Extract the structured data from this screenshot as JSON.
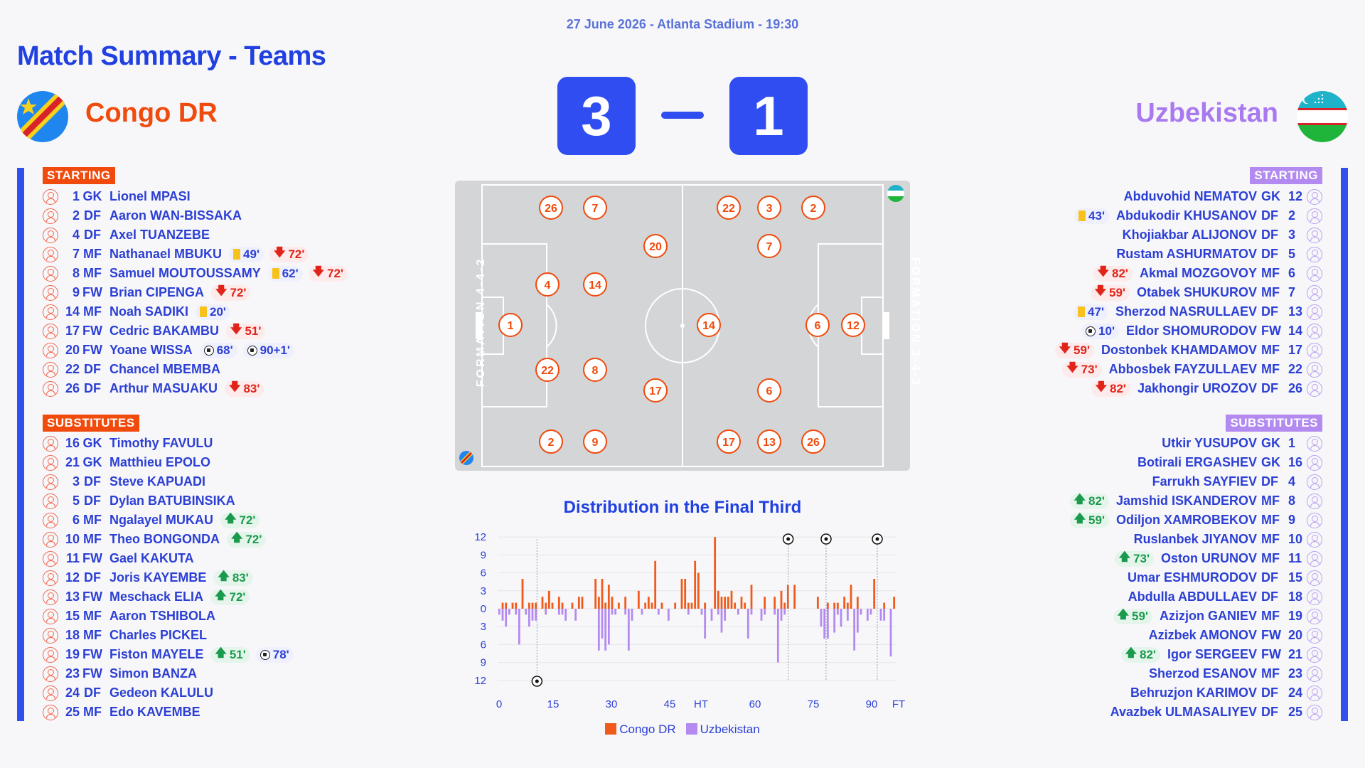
{
  "header": {
    "date_line": "27 June 2026 - Atlanta Stadium - 19:30",
    "title": "Match Summary - Teams"
  },
  "home": {
    "name": "Congo DR",
    "score": "3",
    "color": "#f04a0c",
    "starting_label": "STARTING",
    "subs_label": "SUBSTITUTES",
    "formation": "FORMATION 4-4-2",
    "starting": [
      {
        "num": "1",
        "pos": "GK",
        "name": "Lionel MPASI",
        "events": []
      },
      {
        "num": "2",
        "pos": "DF",
        "name": "Aaron WAN-BISSAKA",
        "events": []
      },
      {
        "num": "4",
        "pos": "DF",
        "name": "Axel TUANZEBE",
        "events": []
      },
      {
        "num": "7",
        "pos": "MF",
        "name": "Nathanael MBUKU",
        "events": [
          {
            "type": "yellow",
            "min": "49'"
          },
          {
            "type": "off",
            "min": "72'"
          }
        ]
      },
      {
        "num": "8",
        "pos": "MF",
        "name": "Samuel MOUTOUSSAMY",
        "events": [
          {
            "type": "yellow",
            "min": "62'"
          },
          {
            "type": "off",
            "min": "72'"
          }
        ]
      },
      {
        "num": "9",
        "pos": "FW",
        "name": "Brian CIPENGA",
        "events": [
          {
            "type": "off",
            "min": "72'"
          }
        ]
      },
      {
        "num": "14",
        "pos": "MF",
        "name": "Noah SADIKI",
        "events": [
          {
            "type": "yellow",
            "min": "20'"
          }
        ]
      },
      {
        "num": "17",
        "pos": "FW",
        "name": "Cedric BAKAMBU",
        "events": [
          {
            "type": "off",
            "min": "51'"
          }
        ]
      },
      {
        "num": "20",
        "pos": "FW",
        "name": "Yoane WISSA",
        "events": [
          {
            "type": "goal",
            "min": "68'"
          },
          {
            "type": "goal",
            "min": "90+1'"
          }
        ]
      },
      {
        "num": "22",
        "pos": "DF",
        "name": "Chancel MBEMBA",
        "events": []
      },
      {
        "num": "26",
        "pos": "DF",
        "name": "Arthur MASUAKU",
        "events": [
          {
            "type": "off",
            "min": "83'"
          }
        ]
      }
    ],
    "subs": [
      {
        "num": "16",
        "pos": "GK",
        "name": "Timothy FAVULU",
        "events": []
      },
      {
        "num": "21",
        "pos": "GK",
        "name": "Matthieu EPOLO",
        "events": []
      },
      {
        "num": "3",
        "pos": "DF",
        "name": "Steve KAPUADI",
        "events": []
      },
      {
        "num": "5",
        "pos": "DF",
        "name": "Dylan BATUBINSIKA",
        "events": []
      },
      {
        "num": "6",
        "pos": "MF",
        "name": "Ngalayel MUKAU",
        "events": [
          {
            "type": "on",
            "min": "72'"
          }
        ]
      },
      {
        "num": "10",
        "pos": "MF",
        "name": "Theo BONGONDA",
        "events": [
          {
            "type": "on",
            "min": "72'"
          }
        ]
      },
      {
        "num": "11",
        "pos": "FW",
        "name": "Gael KAKUTA",
        "events": []
      },
      {
        "num": "12",
        "pos": "DF",
        "name": "Joris KAYEMBE",
        "events": [
          {
            "type": "on",
            "min": "83'"
          }
        ]
      },
      {
        "num": "13",
        "pos": "FW",
        "name": "Meschack ELIA",
        "events": [
          {
            "type": "on",
            "min": "72'"
          }
        ]
      },
      {
        "num": "15",
        "pos": "MF",
        "name": "Aaron TSHIBOLA",
        "events": []
      },
      {
        "num": "18",
        "pos": "MF",
        "name": "Charles PICKEL",
        "events": []
      },
      {
        "num": "19",
        "pos": "FW",
        "name": "Fiston MAYELE",
        "events": [
          {
            "type": "on",
            "min": "51'"
          },
          {
            "type": "goal",
            "min": "78'"
          }
        ]
      },
      {
        "num": "23",
        "pos": "FW",
        "name": "Simon BANZA",
        "events": []
      },
      {
        "num": "24",
        "pos": "DF",
        "name": "Gedeon KALULU",
        "events": []
      },
      {
        "num": "25",
        "pos": "MF",
        "name": "Edo KAVEMBE",
        "events": []
      }
    ],
    "pitch_numbers": [
      "26",
      "7",
      "22",
      "3",
      "2",
      "20",
      "7",
      "4",
      "14",
      "1",
      "14",
      "6",
      "12",
      "22",
      "8",
      "17",
      "6",
      "2",
      "9",
      "17",
      "13",
      "26"
    ]
  },
  "away": {
    "name": "Uzbekistan",
    "score": "1",
    "color": "#a979f0",
    "starting_label": "STARTING",
    "subs_label": "SUBSTITUTES",
    "formation": "FORMATION 3-4-3",
    "starting": [
      {
        "num": "12",
        "pos": "GK",
        "name": "Abduvohid NEMATOV",
        "events": []
      },
      {
        "num": "2",
        "pos": "DF",
        "name": "Abdukodir KHUSANOV",
        "events": [
          {
            "type": "yellow",
            "min": "43'"
          }
        ]
      },
      {
        "num": "3",
        "pos": "DF",
        "name": "Khojiakbar ALIJONOV",
        "events": []
      },
      {
        "num": "5",
        "pos": "DF",
        "name": "Rustam ASHURMATOV",
        "events": []
      },
      {
        "num": "6",
        "pos": "MF",
        "name": "Akmal MOZGOVOY",
        "events": [
          {
            "type": "off",
            "min": "82'"
          }
        ]
      },
      {
        "num": "7",
        "pos": "MF",
        "name": "Otabek SHUKUROV",
        "events": [
          {
            "type": "off",
            "min": "59'"
          }
        ]
      },
      {
        "num": "13",
        "pos": "DF",
        "name": "Sherzod NASRULLAEV",
        "events": [
          {
            "type": "yellow",
            "min": "47'"
          }
        ]
      },
      {
        "num": "14",
        "pos": "FW",
        "name": "Eldor SHOMURODOV",
        "events": [
          {
            "type": "goal",
            "min": "10'"
          }
        ]
      },
      {
        "num": "17",
        "pos": "MF",
        "name": "Dostonbek KHAMDAMOV",
        "events": [
          {
            "type": "off",
            "min": "59'"
          }
        ]
      },
      {
        "num": "22",
        "pos": "MF",
        "name": "Abbosbek FAYZULLAEV",
        "events": [
          {
            "type": "off",
            "min": "73'"
          }
        ]
      },
      {
        "num": "26",
        "pos": "DF",
        "name": "Jakhongir UROZOV",
        "events": [
          {
            "type": "off",
            "min": "82'"
          }
        ]
      }
    ],
    "subs": [
      {
        "num": "1",
        "pos": "GK",
        "name": "Utkir YUSUPOV",
        "events": []
      },
      {
        "num": "16",
        "pos": "GK",
        "name": "Botirali ERGASHEV",
        "events": []
      },
      {
        "num": "4",
        "pos": "DF",
        "name": "Farrukh SAYFIEV",
        "events": []
      },
      {
        "num": "8",
        "pos": "MF",
        "name": "Jamshid ISKANDEROV",
        "events": [
          {
            "type": "on",
            "min": "82'"
          }
        ]
      },
      {
        "num": "9",
        "pos": "MF",
        "name": "Odiljon XAMROBEKOV",
        "events": [
          {
            "type": "on",
            "min": "59'"
          }
        ]
      },
      {
        "num": "10",
        "pos": "MF",
        "name": "Ruslanbek JIYANOV",
        "events": []
      },
      {
        "num": "11",
        "pos": "MF",
        "name": "Oston URUNOV",
        "events": [
          {
            "type": "on",
            "min": "73'"
          }
        ]
      },
      {
        "num": "15",
        "pos": "DF",
        "name": "Umar ESHMURODOV",
        "events": []
      },
      {
        "num": "18",
        "pos": "DF",
        "name": "Abdulla ABDULLAEV",
        "events": []
      },
      {
        "num": "19",
        "pos": "MF",
        "name": "Azizjon GANIEV",
        "events": [
          {
            "type": "on",
            "min": "59'"
          }
        ]
      },
      {
        "num": "20",
        "pos": "FW",
        "name": "Azizbek AMONOV",
        "events": []
      },
      {
        "num": "21",
        "pos": "FW",
        "name": "Igor SERGEEV",
        "events": [
          {
            "type": "on",
            "min": "82'"
          }
        ]
      },
      {
        "num": "23",
        "pos": "MF",
        "name": "Sherzod ESANOV",
        "events": []
      },
      {
        "num": "24",
        "pos": "DF",
        "name": "Behruzjon KARIMOV",
        "events": []
      },
      {
        "num": "25",
        "pos": "DF",
        "name": "Avazbek ULMASALIYEV",
        "events": []
      }
    ]
  },
  "distribution": {
    "title": "Distribution in the Final Third",
    "legend": [
      "Congo DR",
      "Uzbekistan"
    ]
  },
  "chart_data": {
    "type": "bar",
    "title": "Distribution in the Final Third",
    "x_ticks": [
      "0",
      "15",
      "30",
      "45",
      "HT",
      "60",
      "75",
      "90",
      "FT"
    ],
    "y_ticks_top": [
      "12",
      "9",
      "6",
      "3",
      "0"
    ],
    "y_ticks_bottom": [
      "3",
      "6",
      "9",
      "12"
    ],
    "ylim": [
      -12,
      12
    ],
    "colors": {
      "home": "#f05a1a",
      "away": "#b48af0"
    },
    "goal_minutes_home": [
      68,
      78,
      91
    ],
    "goal_minutes_away": [
      10
    ],
    "home_values": [
      0,
      1,
      1,
      0,
      1,
      1,
      0,
      5,
      0,
      1,
      1,
      1,
      0,
      2,
      1,
      3,
      1,
      0,
      2,
      1,
      0,
      0,
      1,
      0,
      2,
      2,
      0,
      0,
      0,
      5,
      2,
      5,
      1,
      4,
      2,
      0,
      1,
      0,
      2,
      0,
      0,
      0,
      3,
      0,
      1,
      2,
      1,
      8,
      0,
      1,
      0,
      0,
      0,
      1,
      0,
      5,
      5,
      1,
      1,
      8,
      6,
      0,
      1,
      0,
      0,
      12,
      3,
      2,
      2,
      2,
      3,
      1,
      0,
      2,
      1,
      0,
      4,
      0,
      0,
      0,
      2,
      0,
      0,
      2,
      0,
      3,
      1,
      4,
      0,
      4,
      0,
      0,
      0,
      0,
      0,
      0,
      2,
      0,
      0,
      1,
      0,
      1,
      1,
      0,
      2,
      1,
      4,
      0,
      2,
      0,
      0,
      0,
      0,
      5,
      0,
      0,
      1,
      0,
      0,
      2
    ],
    "away_values": [
      -1,
      -2,
      -3,
      -1,
      0,
      -1,
      -6,
      0,
      -1,
      -3,
      -2,
      -2,
      0,
      0,
      -1,
      0,
      0,
      0,
      -1,
      -1,
      -2,
      0,
      0,
      -2,
      0,
      0,
      0,
      0,
      0,
      0,
      -7,
      -5,
      -7,
      -6,
      -1,
      -1,
      0,
      0,
      -1,
      -7,
      -2,
      0,
      0,
      -1,
      0,
      0,
      0,
      0,
      -1,
      0,
      0,
      -2,
      0,
      0,
      0,
      0,
      0,
      -1,
      0,
      0,
      0,
      -1,
      -5,
      0,
      -2,
      0,
      -1,
      -4,
      -2,
      0,
      0,
      0,
      -1,
      0,
      0,
      -5,
      -1,
      0,
      0,
      -2,
      -1,
      0,
      0,
      -1,
      -9,
      -2,
      -1,
      0,
      0,
      0,
      0,
      0,
      0,
      0,
      0,
      0,
      0,
      -3,
      -5,
      -5,
      0,
      -4,
      -1,
      -3,
      0,
      -2,
      0,
      -7,
      -4,
      -1,
      0,
      -2,
      -1,
      0,
      0,
      -2,
      -2,
      0,
      -8,
      0
    ]
  }
}
